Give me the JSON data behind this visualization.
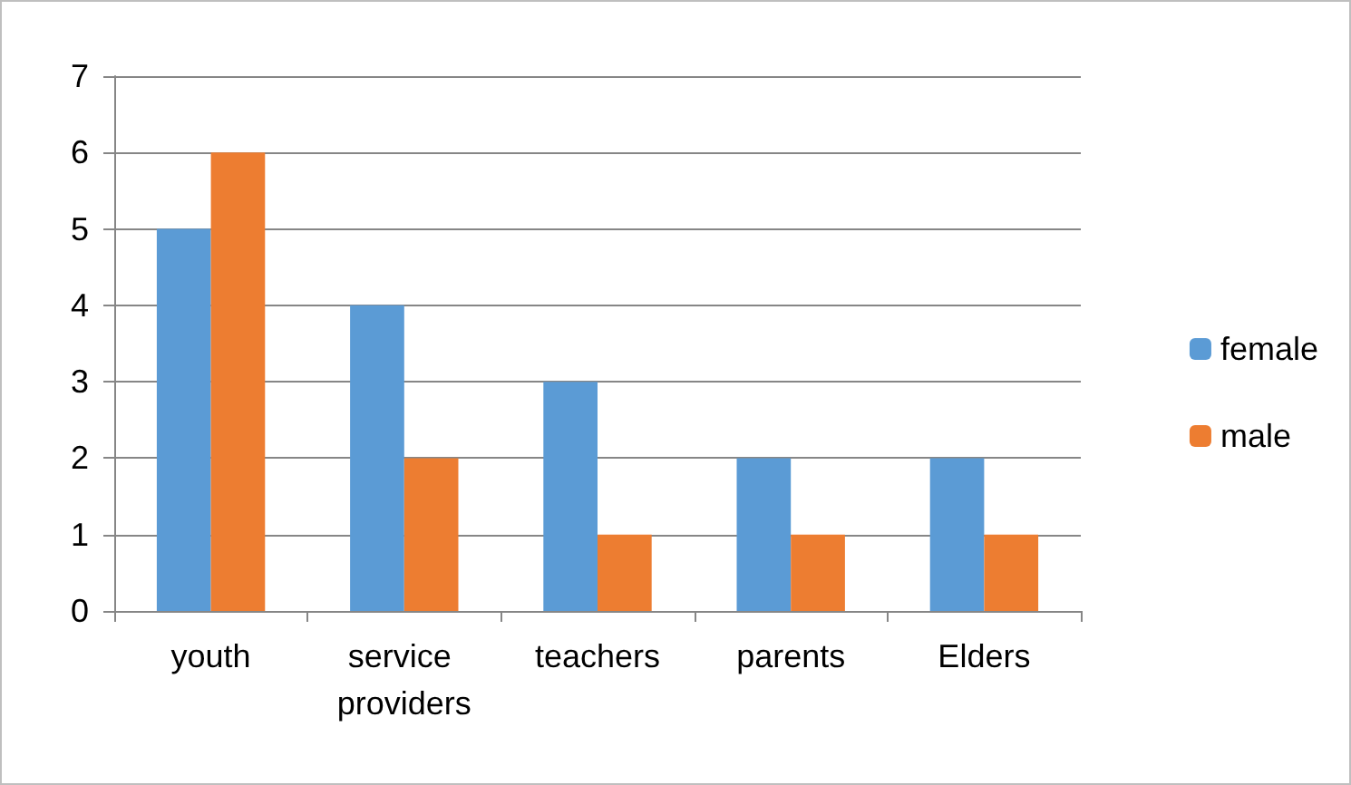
{
  "chart_data": {
    "type": "bar",
    "categories": [
      "youth",
      "service providers",
      "teachers",
      "parents",
      "Elders"
    ],
    "series": [
      {
        "name": "female",
        "color": "#5b9bd5",
        "values": [
          5,
          4,
          3,
          2,
          2
        ]
      },
      {
        "name": "male",
        "color": "#ed7d31",
        "values": [
          6,
          2,
          1,
          1,
          1
        ]
      }
    ],
    "ylim": [
      0,
      7
    ],
    "yticks": [
      0,
      1,
      2,
      3,
      4,
      5,
      6,
      7
    ],
    "grid": "y",
    "legend": "right"
  }
}
